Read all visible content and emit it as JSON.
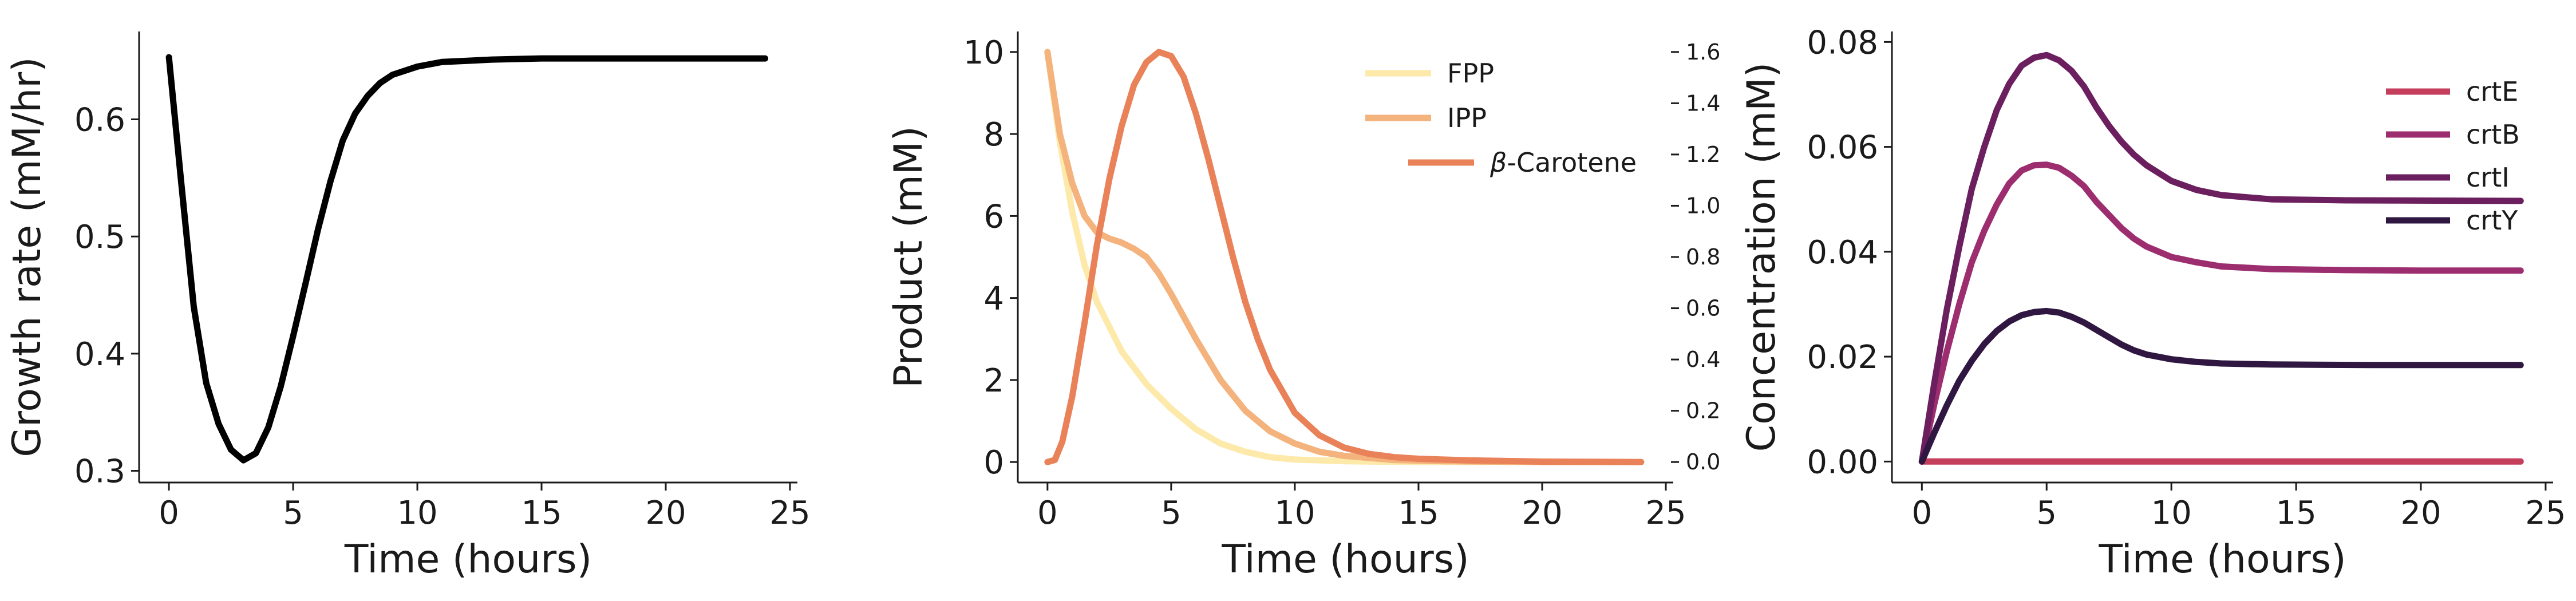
{
  "chart_data": [
    {
      "type": "line",
      "xlabel": "Time (hours)",
      "ylabel": "Growth rate (mM/hr)",
      "xlim": [
        -1.2,
        25.3
      ],
      "ylim": [
        0.29,
        0.675
      ],
      "xticks": [
        0,
        5,
        10,
        15,
        20,
        25
      ],
      "yticks": [
        0.3,
        0.4,
        0.5,
        0.6
      ],
      "ytick_labels": [
        "0.3",
        "0.4",
        "0.5",
        "0.6"
      ],
      "legend": "none",
      "series": [
        {
          "color": "#000000",
          "points": [
            [
              0,
              0.653
            ],
            [
              0.5,
              0.545
            ],
            [
              1,
              0.44
            ],
            [
              1.5,
              0.375
            ],
            [
              2,
              0.34
            ],
            [
              2.5,
              0.318
            ],
            [
              3,
              0.309
            ],
            [
              3.5,
              0.315
            ],
            [
              4,
              0.337
            ],
            [
              4.5,
              0.372
            ],
            [
              5,
              0.415
            ],
            [
              5.5,
              0.46
            ],
            [
              6,
              0.506
            ],
            [
              6.5,
              0.547
            ],
            [
              7,
              0.582
            ],
            [
              7.5,
              0.605
            ],
            [
              8,
              0.62
            ],
            [
              8.5,
              0.631
            ],
            [
              9,
              0.638
            ],
            [
              10,
              0.645
            ],
            [
              11,
              0.649
            ],
            [
              12,
              0.65
            ],
            [
              13,
              0.651
            ],
            [
              15,
              0.652
            ],
            [
              20,
              0.652
            ],
            [
              24,
              0.652
            ]
          ]
        }
      ]
    },
    {
      "type": "line",
      "xlabel": "Time (hours)",
      "ylabel": "Product (mM)",
      "xlim": [
        -1.2,
        25.3
      ],
      "ylim": [
        -0.5,
        10.5
      ],
      "xticks": [
        0,
        5,
        10,
        15,
        20,
        25
      ],
      "yticks": [
        0,
        2,
        4,
        6,
        8,
        10
      ],
      "ytick_labels": [
        "0",
        "2",
        "4",
        "6",
        "8",
        "10"
      ],
      "secondary_yaxis": {
        "ylim": [
          -0.08,
          1.68
        ],
        "yticks": [
          0.0,
          0.2,
          0.4,
          0.6,
          0.8,
          1.0,
          1.2,
          1.4,
          1.6
        ],
        "ytick_labels": [
          "0.0",
          "0.2",
          "0.4",
          "0.6",
          "0.8",
          "1.0",
          "1.2",
          "1.4",
          "1.6"
        ]
      },
      "legend": "top-right",
      "series": [
        {
          "name": "FPP",
          "color": "#fde9a9",
          "points": [
            [
              0,
              10.0
            ],
            [
              0.5,
              7.8
            ],
            [
              1,
              6.1
            ],
            [
              1.5,
              4.8
            ],
            [
              2,
              3.9
            ],
            [
              3,
              2.7
            ],
            [
              4,
              1.9
            ],
            [
              5,
              1.3
            ],
            [
              6,
              0.8
            ],
            [
              7,
              0.45
            ],
            [
              8,
              0.25
            ],
            [
              9,
              0.12
            ],
            [
              10,
              0.06
            ],
            [
              12,
              0.02
            ],
            [
              15,
              0.0
            ],
            [
              24,
              0.0
            ]
          ]
        },
        {
          "name": "IPP",
          "color": "#f4b27c",
          "points": [
            [
              0,
              10.0
            ],
            [
              0.5,
              8.0
            ],
            [
              1,
              6.8
            ],
            [
              1.5,
              6.0
            ],
            [
              2,
              5.6
            ],
            [
              2.5,
              5.45
            ],
            [
              3,
              5.35
            ],
            [
              3.5,
              5.2
            ],
            [
              4,
              5.0
            ],
            [
              4.5,
              4.6
            ],
            [
              5,
              4.1
            ],
            [
              6,
              3.0
            ],
            [
              7,
              2.0
            ],
            [
              8,
              1.25
            ],
            [
              9,
              0.75
            ],
            [
              10,
              0.45
            ],
            [
              11,
              0.25
            ],
            [
              12,
              0.15
            ],
            [
              14,
              0.05
            ],
            [
              16,
              0.02
            ],
            [
              20,
              0.0
            ],
            [
              24,
              0.0
            ]
          ]
        },
        {
          "name": "β-Carotene",
          "color": "#e98259",
          "points": [
            [
              0,
              0.0
            ],
            [
              0.3,
              0.05
            ],
            [
              0.6,
              0.5
            ],
            [
              1,
              1.6
            ],
            [
              1.5,
              3.4
            ],
            [
              2,
              5.3
            ],
            [
              2.5,
              6.9
            ],
            [
              3,
              8.2
            ],
            [
              3.5,
              9.2
            ],
            [
              4,
              9.75
            ],
            [
              4.5,
              10.0
            ],
            [
              5,
              9.9
            ],
            [
              5.5,
              9.4
            ],
            [
              6,
              8.5
            ],
            [
              6.5,
              7.4
            ],
            [
              7,
              6.2
            ],
            [
              7.5,
              5.0
            ],
            [
              8,
              3.9
            ],
            [
              8.5,
              3.0
            ],
            [
              9,
              2.25
            ],
            [
              10,
              1.2
            ],
            [
              11,
              0.65
            ],
            [
              12,
              0.35
            ],
            [
              13,
              0.2
            ],
            [
              14,
              0.12
            ],
            [
              15,
              0.08
            ],
            [
              17,
              0.04
            ],
            [
              20,
              0.01
            ],
            [
              24,
              0.0
            ]
          ]
        }
      ]
    },
    {
      "type": "line",
      "xlabel": "Time (hours)",
      "ylabel": "Concentration (mM)",
      "xlim": [
        -1.2,
        25.3
      ],
      "ylim": [
        -0.004,
        0.082
      ],
      "xticks": [
        0,
        5,
        10,
        15,
        20,
        25
      ],
      "yticks": [
        0.0,
        0.02,
        0.04,
        0.06,
        0.08
      ],
      "ytick_labels": [
        "0.00",
        "0.02",
        "0.04",
        "0.06",
        "0.08"
      ],
      "legend": "top-right",
      "series": [
        {
          "name": "crtE",
          "color": "#c53e5c",
          "points": [
            [
              0,
              0.0
            ],
            [
              24,
              0.0
            ]
          ]
        },
        {
          "name": "crtB",
          "color": "#9c2d6e",
          "points": [
            [
              0,
              0.0
            ],
            [
              0.5,
              0.011
            ],
            [
              1,
              0.021
            ],
            [
              1.5,
              0.03
            ],
            [
              2,
              0.038
            ],
            [
              2.5,
              0.044
            ],
            [
              3,
              0.049
            ],
            [
              3.5,
              0.053
            ],
            [
              4,
              0.0555
            ],
            [
              4.5,
              0.0565
            ],
            [
              5,
              0.0566
            ],
            [
              5.5,
              0.056
            ],
            [
              6,
              0.0545
            ],
            [
              6.5,
              0.0525
            ],
            [
              7,
              0.0495
            ],
            [
              7.5,
              0.047
            ],
            [
              8,
              0.0445
            ],
            [
              8.5,
              0.0425
            ],
            [
              9,
              0.041
            ],
            [
              10,
              0.039
            ],
            [
              11,
              0.038
            ],
            [
              12,
              0.0372
            ],
            [
              14,
              0.0367
            ],
            [
              17,
              0.0365
            ],
            [
              20,
              0.0364
            ],
            [
              24,
              0.0364
            ]
          ]
        },
        {
          "name": "crtI",
          "color": "#6b1f5e",
          "points": [
            [
              0,
              0.0
            ],
            [
              0.5,
              0.015
            ],
            [
              1,
              0.029
            ],
            [
              1.5,
              0.041
            ],
            [
              2,
              0.052
            ],
            [
              2.5,
              0.06
            ],
            [
              3,
              0.067
            ],
            [
              3.5,
              0.072
            ],
            [
              4,
              0.0755
            ],
            [
              4.5,
              0.077
            ],
            [
              5,
              0.0775
            ],
            [
              5.5,
              0.0765
            ],
            [
              6,
              0.0745
            ],
            [
              6.5,
              0.0715
            ],
            [
              7,
              0.0675
            ],
            [
              7.5,
              0.064
            ],
            [
              8,
              0.061
            ],
            [
              8.5,
              0.0585
            ],
            [
              9,
              0.0565
            ],
            [
              10,
              0.0535
            ],
            [
              11,
              0.0518
            ],
            [
              12,
              0.0508
            ],
            [
              14,
              0.05
            ],
            [
              17,
              0.0498
            ],
            [
              24,
              0.0497
            ]
          ]
        },
        {
          "name": "crtY",
          "color": "#2f1741",
          "points": [
            [
              0,
              0.0
            ],
            [
              0.5,
              0.0055
            ],
            [
              1,
              0.0107
            ],
            [
              1.5,
              0.0154
            ],
            [
              2,
              0.0192
            ],
            [
              2.5,
              0.0224
            ],
            [
              3,
              0.0249
            ],
            [
              3.5,
              0.0267
            ],
            [
              4,
              0.0279
            ],
            [
              4.5,
              0.0285
            ],
            [
              5,
              0.0287
            ],
            [
              5.5,
              0.0284
            ],
            [
              6,
              0.0276
            ],
            [
              6.5,
              0.0265
            ],
            [
              7,
              0.0251
            ],
            [
              7.5,
              0.0237
            ],
            [
              8,
              0.0223
            ],
            [
              8.5,
              0.0212
            ],
            [
              9,
              0.0204
            ],
            [
              10,
              0.0195
            ],
            [
              11,
              0.019
            ],
            [
              12,
              0.0187
            ],
            [
              14,
              0.0185
            ],
            [
              18,
              0.0184
            ],
            [
              24,
              0.0184
            ]
          ]
        }
      ]
    }
  ]
}
